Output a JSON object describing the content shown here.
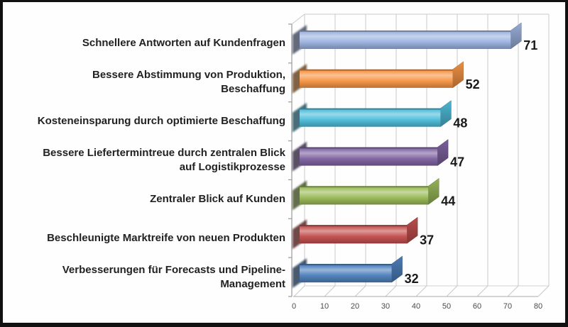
{
  "frame": {
    "border_color": "#111111",
    "background": "#fefefe"
  },
  "chart_data": {
    "type": "bar",
    "orientation": "horizontal",
    "style": "3d-excel",
    "title": "",
    "xlabel": "",
    "ylabel": "",
    "legend": "none",
    "gridlines": "vertical",
    "categories": [
      "Schnellere Antworten auf Kundenfragen",
      "Bessere Abstimmung von Produktion, Beschaffung",
      "Kosteneinsparung durch optimierte Beschaffung",
      "Bessere Liefertermintreue durch zentralen Blick auf Logistikprozesse",
      "Zentraler Blick auf Kunden",
      "Beschleunigte Marktreife von neuen Produkten",
      "Verbesserungen für Forecasts und Pipeline-Management"
    ],
    "category_lines": [
      [
        "Schnellere Antworten auf Kundenfragen"
      ],
      [
        "Bessere Abstimmung von Produktion,",
        "Beschaffung"
      ],
      [
        "Kosteneinsparung durch optimierte Beschaffung"
      ],
      [
        "Bessere Liefertermintreue durch zentralen Blick",
        "auf Logistikprozesse"
      ],
      [
        "Zentraler Blick auf Kunden"
      ],
      [
        "Beschleunigte Marktreife von neuen Produkten"
      ],
      [
        "Verbesserungen für Forecasts und Pipeline-",
        "Management"
      ]
    ],
    "values": [
      71,
      52,
      48,
      47,
      44,
      37,
      32
    ],
    "data_labels": [
      "71",
      "52",
      "48",
      "47",
      "44",
      "37",
      "32"
    ],
    "bar_colors": [
      "#9DB3DF",
      "#F79646",
      "#4FBEDB",
      "#8064A2",
      "#9BBB59",
      "#C3504E",
      "#4F81BD"
    ],
    "x_axis": {
      "min": 0,
      "max": 80,
      "tick_interval": 10,
      "tick_labels": [
        "0",
        "10",
        "20",
        "30",
        "40",
        "50",
        "60",
        "70",
        "80"
      ]
    },
    "colors": {
      "gridline": "#C9C9C9",
      "wall_edge": "#C9C9C9",
      "floor_edge": "#ABABAB",
      "axis_line": "#9B9B9B",
      "tick_label": "#4A4A4A",
      "category_label": "#222222",
      "value_label": "#1A1A1A"
    }
  }
}
